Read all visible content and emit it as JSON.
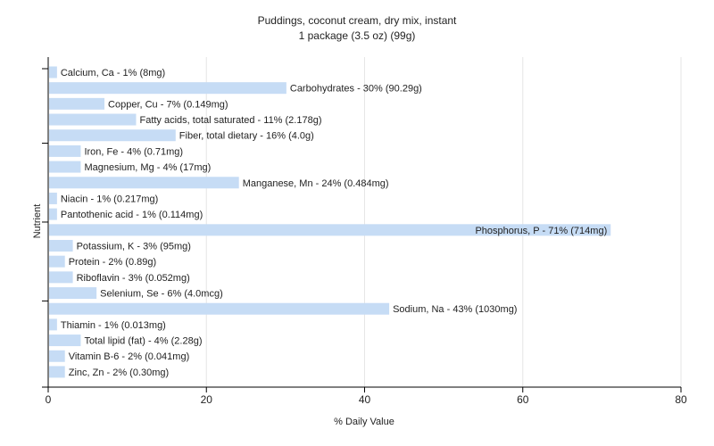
{
  "chart_data": {
    "type": "bar",
    "orientation": "horizontal",
    "title": "Puddings, coconut cream, dry mix, instant",
    "subtitle": "1 package (3.5 oz) (99g)",
    "xlabel": "% Daily Value",
    "ylabel": "Nutrient",
    "xlim": [
      0,
      80
    ],
    "xticks": [
      0,
      20,
      40,
      60,
      80
    ],
    "grid": true,
    "bar_color": "#c6dcf5",
    "categories": [
      "Calcium, Ca",
      "Carbohydrates",
      "Copper, Cu",
      "Fatty acids, total saturated",
      "Fiber, total dietary",
      "Iron, Fe",
      "Magnesium, Mg",
      "Manganese, Mn",
      "Niacin",
      "Pantothenic acid",
      "Phosphorus, P",
      "Potassium, K",
      "Protein",
      "Riboflavin",
      "Selenium, Se",
      "Sodium, Na",
      "Thiamin",
      "Total lipid (fat)",
      "Vitamin B-6",
      "Zinc, Zn"
    ],
    "values": [
      1,
      30,
      7,
      11,
      16,
      4,
      4,
      24,
      1,
      1,
      71,
      3,
      2,
      3,
      6,
      43,
      1,
      4,
      2,
      2
    ],
    "labels": [
      "Calcium, Ca - 1% (8mg)",
      "Carbohydrates - 30% (90.29g)",
      "Copper, Cu - 7% (0.149mg)",
      "Fatty acids, total saturated - 11% (2.178g)",
      "Fiber, total dietary - 16% (4.0g)",
      "Iron, Fe - 4% (0.71mg)",
      "Magnesium, Mg - 4% (17mg)",
      "Manganese, Mn - 24% (0.484mg)",
      "Niacin - 1% (0.217mg)",
      "Pantothenic acid - 1% (0.114mg)",
      "Phosphorus, P - 71% (714mg)",
      "Potassium, K - 3% (95mg)",
      "Protein - 2% (0.89g)",
      "Riboflavin - 3% (0.052mg)",
      "Selenium, Se - 6% (4.0mcg)",
      "Sodium, Na - 43% (1030mg)",
      "Thiamin - 1% (0.013mg)",
      "Total lipid (fat) - 4% (2.28g)",
      "Vitamin B-6 - 2% (0.041mg)",
      "Zinc, Zn - 2% (0.30mg)"
    ]
  }
}
